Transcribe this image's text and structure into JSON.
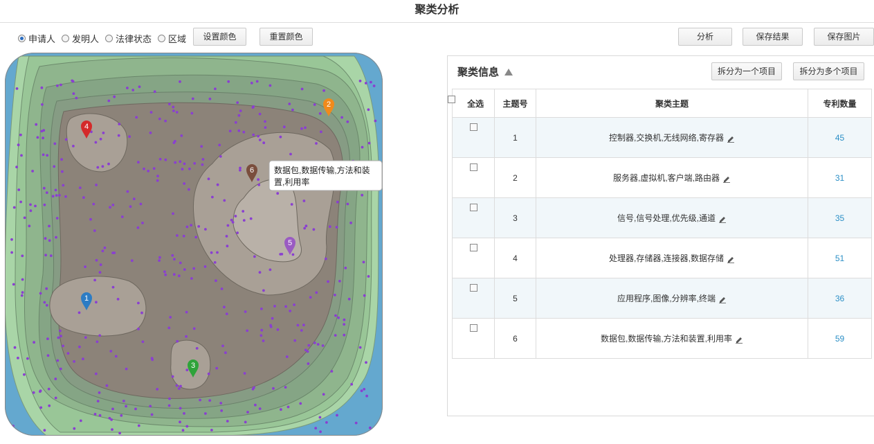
{
  "title": "聚类分析",
  "radio_options": [
    {
      "label": "申请人",
      "selected": true
    },
    {
      "label": "发明人",
      "selected": false
    },
    {
      "label": "法律状态",
      "selected": false
    },
    {
      "label": "区域",
      "selected": false
    }
  ],
  "toolbar": {
    "set_color": "设置颜色",
    "reset_color": "重置颜色",
    "analyze": "分析",
    "save_result": "保存结果",
    "save_image": "保存图片"
  },
  "map": {
    "tooltip": "数据包,数据传输,方法和装置,利用率",
    "colors": {
      "water": "#64a8cf",
      "low": "#a8d4a7",
      "mid": "#86a886",
      "high": "#8c8378",
      "peak": "#b9b0a8",
      "dot": "#8a3fd1"
    },
    "markers": [
      {
        "label": "1",
        "color": "#2c7cc4"
      },
      {
        "label": "2",
        "color": "#f08a1c"
      },
      {
        "label": "3",
        "color": "#2fa33a"
      },
      {
        "label": "4",
        "color": "#d42a2a"
      },
      {
        "label": "5",
        "color": "#9a5bc2"
      },
      {
        "label": "6",
        "color": "#7a4e3d"
      }
    ]
  },
  "panel": {
    "title": "聚类信息",
    "split_one": "拆分为一个项目",
    "split_many": "拆分为多个项目",
    "columns": {
      "select_all": "全选",
      "topic_no": "主题号",
      "topic": "聚类主题",
      "count": "专利数量"
    },
    "rows": [
      {
        "no": "1",
        "topic": "控制器,交换机,无线网络,寄存器",
        "count": "45"
      },
      {
        "no": "2",
        "topic": "服务器,虚拟机,客户端,路由器",
        "count": "31"
      },
      {
        "no": "3",
        "topic": "信号,信号处理,优先级,通道",
        "count": "35"
      },
      {
        "no": "4",
        "topic": "处理器,存储器,连接器,数据存储",
        "count": "51"
      },
      {
        "no": "5",
        "topic": "应用程序,图像,分辨率,终端",
        "count": "36"
      },
      {
        "no": "6",
        "topic": "数据包,数据传输,方法和装置,利用率",
        "count": "59"
      }
    ]
  }
}
